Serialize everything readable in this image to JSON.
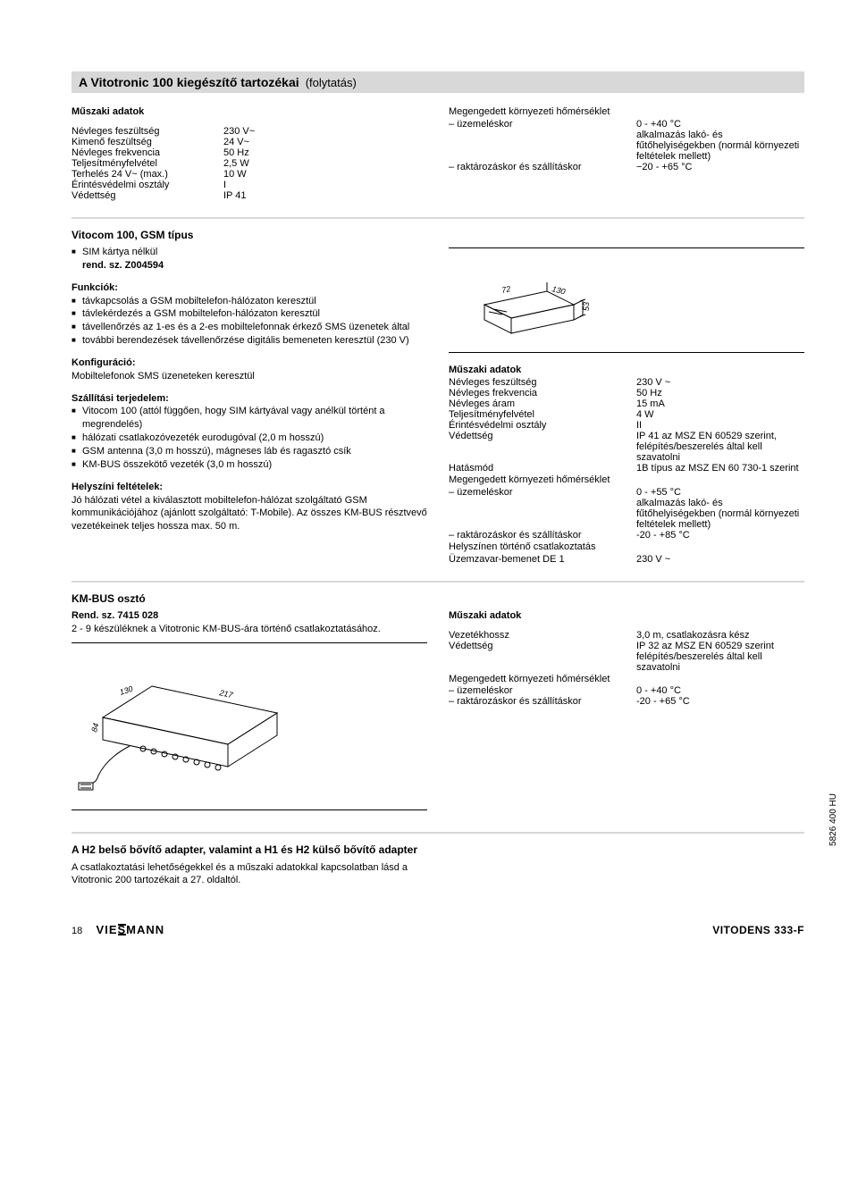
{
  "header": {
    "title": "A Vitotronic 100 kiegészítő tartozékai",
    "sub": "(folytatás)"
  },
  "sec1": {
    "left_title": "Műszaki adatok",
    "rows": [
      {
        "l": "Névleges feszültség",
        "v": "230 V~"
      },
      {
        "l": "Kimenő feszültség",
        "v": "24 V~"
      },
      {
        "l": "Névleges frekvencia",
        "v": "50 Hz"
      },
      {
        "l": "Teljesítményfelvétel",
        "v": "2,5 W"
      },
      {
        "l": "Terhelés 24 V~ (max.)",
        "v": "10 W"
      },
      {
        "l": "Érintésvédelmi osztály",
        "v": "I"
      },
      {
        "l": "Védettség",
        "v": "IP 41"
      }
    ],
    "right_title": "Megengedett környezeti hőmérséklet",
    "r1l": "– üzemeléskor",
    "r1v": "0 - +40 °C",
    "r1v2": "alkalmazás lakó- és fűtőhelyiségekben (normál környezeti feltételek mellett)",
    "r2l": "– raktározáskor és szállításkor",
    "r2v": "−20 - +65 °C"
  },
  "sec2": {
    "title": "Vitocom 100, GSM típus",
    "sim": "SIM kártya nélkül",
    "rend": "rend. sz. Z004594",
    "funk_t": "Funkciók:",
    "funk": [
      "távkapcsolás a GSM mobiltelefon-hálózaton keresztül",
      "távlekérdezés a GSM mobiltelefon-hálózaton keresztül",
      "távellenőrzés az 1-es és a 2-es mobiltelefonnak érkező SMS üzenetek által",
      "további berendezések távellenőrzése digitális bemeneten keresztül (230 V)"
    ],
    "konf_t": "Konfiguráció:",
    "konf": "Mobiltelefonok SMS üzeneteken keresztül",
    "szall_t": "Szállítási terjedelem:",
    "szall": [
      "Vitocom 100 (attól függően, hogy SIM kártyával vagy anélkül történt a megrendelés)",
      "hálózati csatlakozóvezeték eurodugóval (2,0 m hosszú)",
      "GSM antenna (3,0 m hosszú), mágneses láb és ragasztó csík",
      "KM-BUS összekötő vezeték (3,0 m hosszú)"
    ],
    "hely_t": "Helyszíni feltételek:",
    "hely": "Jó hálózati vétel a kiválasztott mobiltelefon-hálózat szolgáltató GSM kommunikációjához (ajánlott szolgáltató: T-Mobile). Az összes KM-BUS résztvevő vezetékeinek teljes hossza max. 50 m.",
    "dims": {
      "d1": "72",
      "d2": "130",
      "d3": "53"
    },
    "right_t": "Műszaki adatok",
    "specs": [
      {
        "l": "Névleges feszültség",
        "v": "230 V ~"
      },
      {
        "l": "Névleges frekvencia",
        "v": "50 Hz"
      },
      {
        "l": "Névleges áram",
        "v": "15 mA"
      },
      {
        "l": "Teljesítményfelvétel",
        "v": "4 W"
      },
      {
        "l": "Érintésvédelmi osztály",
        "v": "II"
      },
      {
        "l": "Védettség",
        "v": "IP 41 az MSZ EN 60529 szerint, felépítés/beszerelés által kell szavatolni"
      },
      {
        "l": "Hatásmód",
        "v": "1B típus az MSZ EN 60 730-1 szerint"
      }
    ],
    "env_t": "Megengedett környezeti hőmérséklet",
    "e1l": "– üzemeléskor",
    "e1v": "0 - +55 °C",
    "e1v2": "alkalmazás lakó- és fűtőhelyiségekben (normál környezeti feltételek mellett)",
    "e2l": "– raktározáskor és szállításkor",
    "e2v": "-20 - +85 °C",
    "e3l": "Helyszínen történő csatlakoztatás",
    "e4l": "Üzemzavar-bemenet DE 1",
    "e4v": "230 V ~"
  },
  "sec3": {
    "title": "KM-BUS osztó",
    "rend": "Rend. sz. 7415 028",
    "desc": "2 - 9 készüléknek a Vitotronic KM-BUS-ára történő csatlakoztatásához.",
    "dims": {
      "d1": "130",
      "d2": "217",
      "d3": "84"
    },
    "right_t": "Műszaki adatok",
    "r1l": "Vezetékhossz",
    "r1v": "3,0 m,  csatlakozásra kész",
    "r2l": "Védettség",
    "r2v": "IP 32 az MSZ EN 60529 szerint felépítés/beszerelés által kell szavatolni",
    "env_t": "Megengedett környezeti hőmérséklet",
    "e1l": "– üzemeléskor",
    "e1v": "0 - +40 °C",
    "e2l": "– raktározáskor és szállításkor",
    "e2v": "-20 - +65 °C"
  },
  "sec4": {
    "title": "A H2 belső bővítő adapter, valamint a H1 és H2 külső bővítő adapter",
    "text": "A csatlakoztatási lehetőségekkel és a műszaki adatokkal kapcsolatban lásd a Vitotronic 200 tartozékait a 27. oldaltól."
  },
  "footer": {
    "page": "18",
    "brand": "VIESMANN",
    "product": "VITODENS 333-F",
    "code": "5826 400 HU"
  }
}
